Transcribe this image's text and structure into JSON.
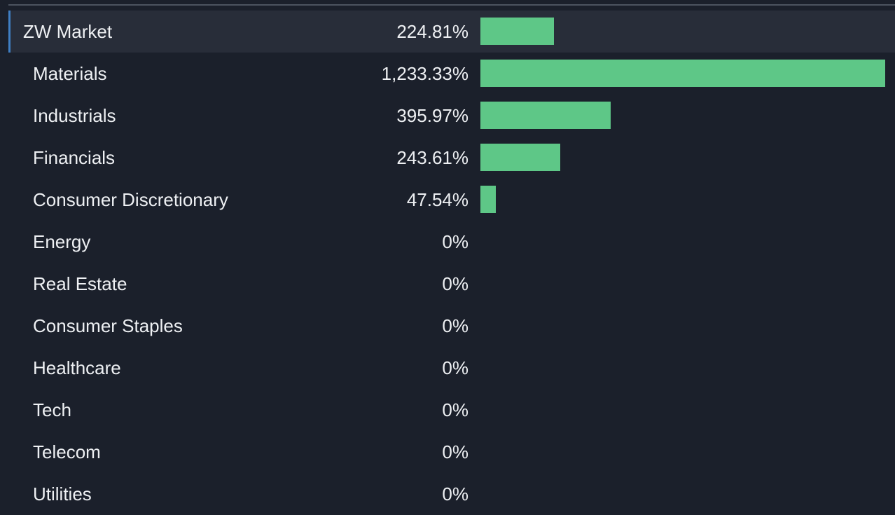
{
  "chart_data": {
    "type": "bar",
    "orientation": "horizontal",
    "categories": [
      "ZW Market",
      "Materials",
      "Industrials",
      "Financials",
      "Consumer Discretionary",
      "Energy",
      "Real Estate",
      "Consumer Staples",
      "Healthcare",
      "Tech",
      "Telecom",
      "Utilities"
    ],
    "value_labels": [
      "224.81%",
      "1,233.33%",
      "395.97%",
      "243.61%",
      "47.54%",
      "0%",
      "0%",
      "0%",
      "0%",
      "0%",
      "0%",
      "0%"
    ],
    "values": [
      224.81,
      1233.33,
      395.97,
      243.61,
      47.54,
      0,
      0,
      0,
      0,
      0,
      0,
      0
    ],
    "highlighted_category": "ZW Market",
    "bar_color": "#5ec787",
    "highlight_color": "#3f7fc4",
    "xlim": [
      0,
      1233.33
    ]
  }
}
